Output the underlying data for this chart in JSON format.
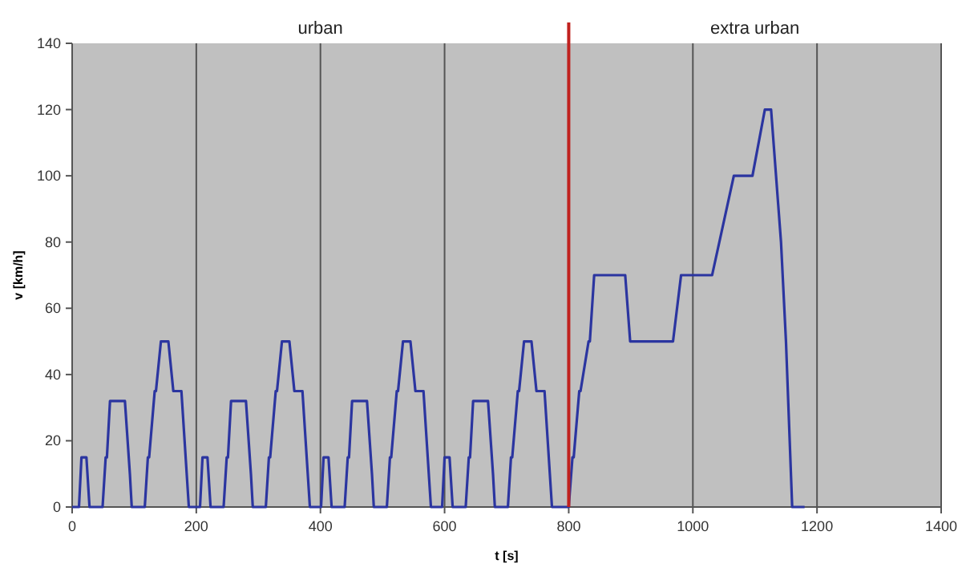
{
  "chart_data": {
    "type": "line",
    "xlabel": "t [s]",
    "ylabel": "v [km/h]",
    "annotations": [
      "urban",
      "extra urban"
    ],
    "xlim": [
      0,
      1400
    ],
    "xticks": [
      0,
      200,
      400,
      600,
      800,
      1000,
      1200,
      1400
    ],
    "ylim": [
      0,
      140
    ],
    "yticks": [
      0,
      20,
      40,
      60,
      80,
      100,
      120,
      140
    ],
    "grid": "x",
    "marker": "none",
    "line_style": "solid",
    "ref_lines": [
      {
        "axis": "x",
        "value": 800,
        "color": "#c0211e"
      }
    ],
    "series": [
      {
        "color": "#2b35a0",
        "x": [
          0,
          11,
          15,
          23,
          28,
          49,
          54,
          56,
          61,
          85,
          93,
          96,
          117,
          122,
          124,
          133,
          135,
          143,
          155,
          163,
          176,
          188,
          195,
          206,
          210,
          218,
          223,
          244,
          249,
          251,
          256,
          280,
          288,
          291,
          312,
          317,
          319,
          328,
          330,
          338,
          350,
          358,
          371,
          383,
          390,
          401,
          405,
          413,
          418,
          439,
          444,
          446,
          451,
          475,
          483,
          486,
          507,
          512,
          514,
          523,
          525,
          533,
          545,
          553,
          566,
          578,
          585,
          596,
          600,
          608,
          613,
          634,
          639,
          641,
          646,
          670,
          678,
          681,
          702,
          707,
          709,
          718,
          720,
          728,
          740,
          748,
          761,
          773,
          800,
          806,
          808,
          817,
          819,
          832,
          834,
          841,
          891,
          899,
          968,
          981,
          1031,
          1066,
          1096,
          1116,
          1126,
          1142,
          1150,
          1160,
          1180
        ],
        "values": [
          0,
          0,
          15,
          15,
          0,
          0,
          15,
          15,
          32,
          32,
          10,
          0,
          0,
          15,
          15,
          35,
          35,
          50,
          50,
          35,
          35,
          0,
          0,
          0,
          15,
          15,
          0,
          0,
          15,
          15,
          32,
          32,
          10,
          0,
          0,
          15,
          15,
          35,
          35,
          50,
          50,
          35,
          35,
          0,
          0,
          0,
          15,
          15,
          0,
          0,
          15,
          15,
          32,
          32,
          10,
          0,
          0,
          15,
          15,
          35,
          35,
          50,
          50,
          35,
          35,
          0,
          0,
          0,
          15,
          15,
          0,
          0,
          15,
          15,
          32,
          32,
          10,
          0,
          0,
          15,
          15,
          35,
          35,
          50,
          50,
          35,
          35,
          0,
          0,
          15,
          15,
          35,
          35,
          50,
          50,
          70,
          70,
          50,
          50,
          70,
          70,
          100,
          100,
          120,
          120,
          80,
          50,
          0,
          0
        ]
      }
    ]
  }
}
